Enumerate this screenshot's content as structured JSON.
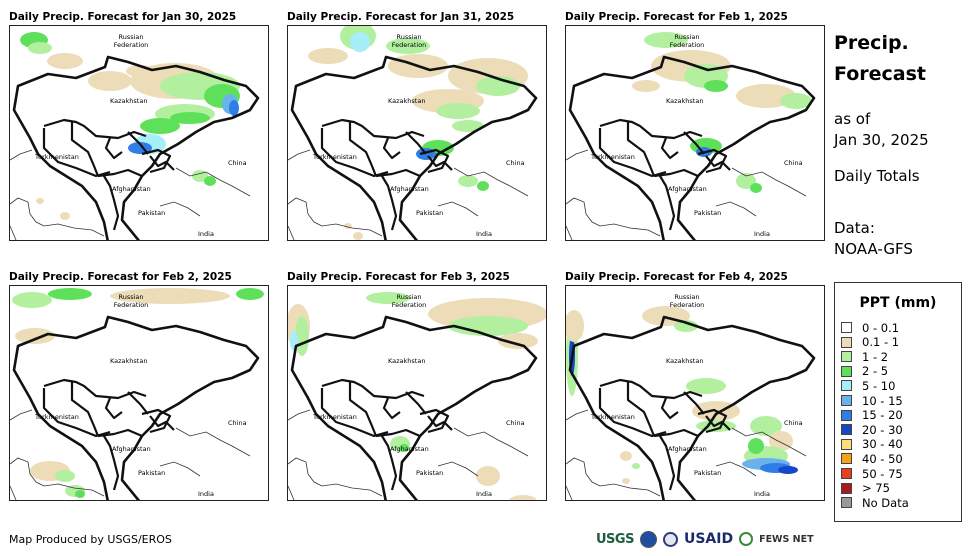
{
  "panels": [
    {
      "title": "Daily Precip. Forecast for Jan 30, 2025"
    },
    {
      "title": "Daily Precip. Forecast for Jan 31, 2025"
    },
    {
      "title": "Daily Precip. Forecast for Feb 1, 2025"
    },
    {
      "title": "Daily Precip. Forecast for Feb 2, 2025"
    },
    {
      "title": "Daily Precip. Forecast for Feb 3, 2025"
    },
    {
      "title": "Daily Precip. Forecast for Feb 4, 2025"
    }
  ],
  "map_labels": {
    "russia_line1": "Russian",
    "russia_line2": "Federation",
    "kazakhstan": "Kazakhstan",
    "turkmenistan": "Turkmenistan",
    "china": "China",
    "afghanistan": "Afghanistan",
    "pakistan": "Pakistan",
    "india": "India"
  },
  "side": {
    "title_line1": "Precip.",
    "title_line2": "Forecast",
    "asof_line1": "as of",
    "asof_line2": "Jan 30, 2025",
    "daily_totals": "Daily Totals",
    "data_line1": "Data:",
    "data_line2": "NOAA-GFS"
  },
  "legend": {
    "title": "PPT (mm)",
    "items": [
      {
        "label": "0 - 0.1",
        "color": "#ffffff"
      },
      {
        "label": "0.1 - 1",
        "color": "#ecdcb8"
      },
      {
        "label": "1 - 2",
        "color": "#b2f0a0"
      },
      {
        "label": "2 - 5",
        "color": "#5fe05a"
      },
      {
        "label": "5 - 10",
        "color": "#a6eef8"
      },
      {
        "label": "10 - 15",
        "color": "#6ab2ec"
      },
      {
        "label": "15 - 20",
        "color": "#2e7ee6"
      },
      {
        "label": "20 - 30",
        "color": "#1448c8"
      },
      {
        "label": "30 - 40",
        "color": "#fbe07a"
      },
      {
        "label": "40 - 50",
        "color": "#f3a21a"
      },
      {
        "label": "50 - 75",
        "color": "#e8401c"
      },
      {
        "label": "> 75",
        "color": "#a61c1c"
      },
      {
        "label": "No Data",
        "color": "#9a9a9a"
      }
    ]
  },
  "footer": {
    "credit": "Map Produced by USGS/EROS"
  },
  "logos": {
    "usgs": "USGS",
    "usaid": "USAID",
    "fews": "FEWS NET"
  }
}
